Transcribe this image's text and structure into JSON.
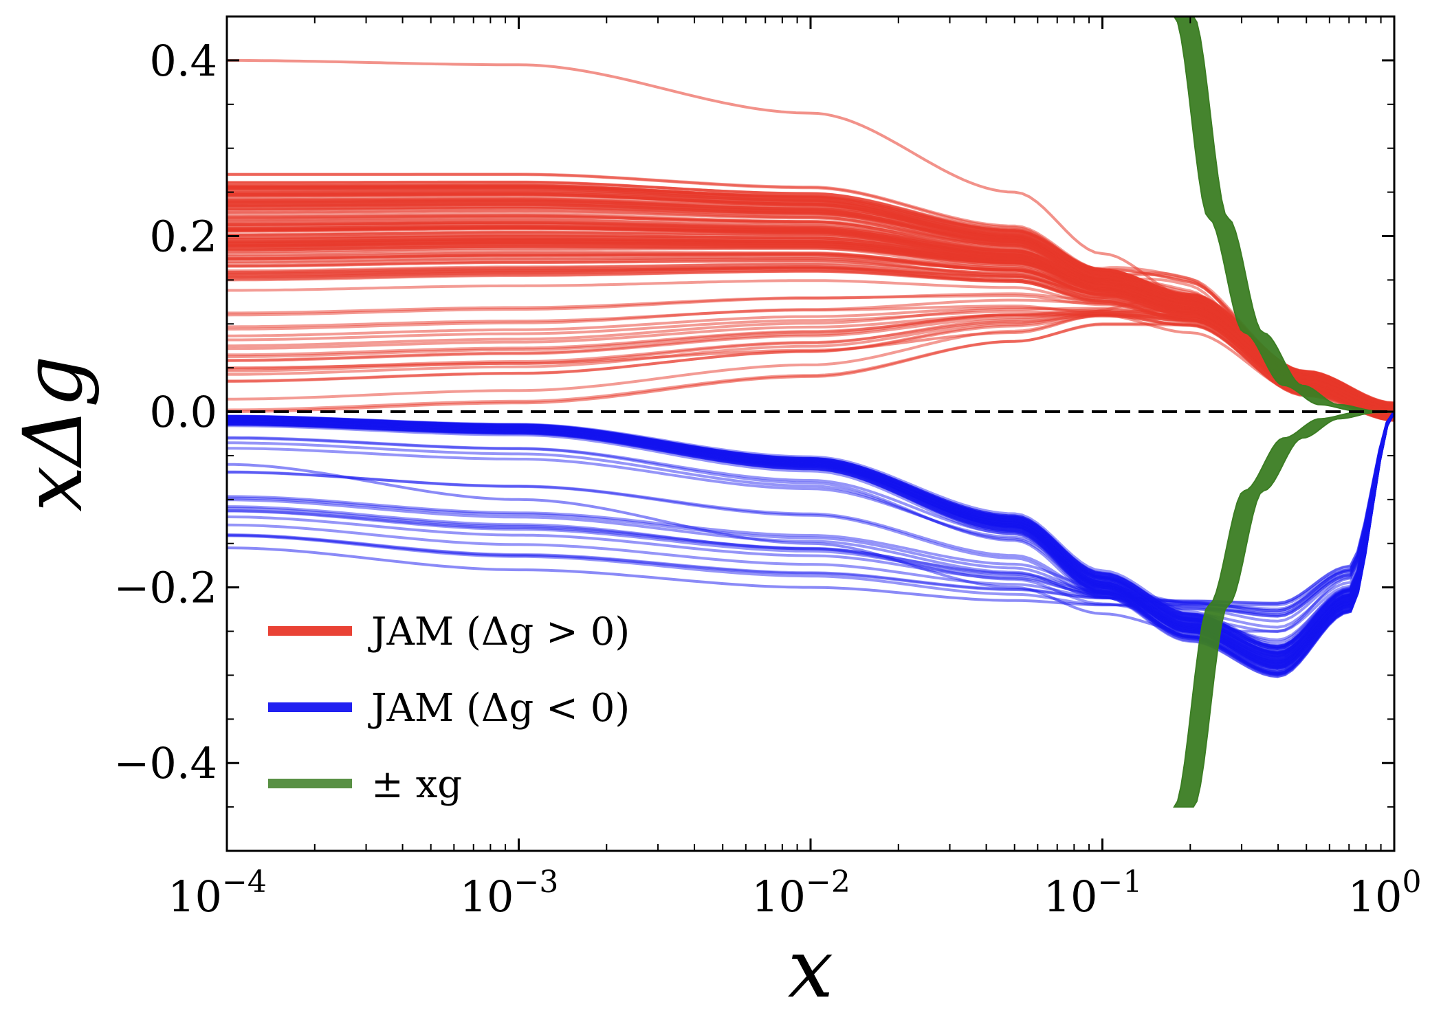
{
  "chart_data": {
    "type": "line",
    "title": "",
    "xlabel": "x",
    "ylabel": "xΔg",
    "xscale": "log",
    "xlim": [
      0.0001,
      1
    ],
    "ylim": [
      -0.5,
      0.45
    ],
    "x_ticks": [
      {
        "value": 0.0001,
        "base": "10",
        "exp": "−4"
      },
      {
        "value": 0.001,
        "base": "10",
        "exp": "−3"
      },
      {
        "value": 0.01,
        "base": "10",
        "exp": "−2"
      },
      {
        "value": 0.1,
        "base": "10",
        "exp": "−1"
      },
      {
        "value": 1,
        "base": "10",
        "exp": "0"
      }
    ],
    "y_ticks": [
      {
        "value": 0.4,
        "label": "0.4"
      },
      {
        "value": 0.2,
        "label": "0.2"
      },
      {
        "value": 0.0,
        "label": "0.0"
      },
      {
        "value": -0.2,
        "label": "−0.2"
      },
      {
        "value": -0.4,
        "label": "−0.4"
      }
    ],
    "reference_line": {
      "y": 0,
      "style": "dashed"
    },
    "legend": {
      "position": "lower-left",
      "entries": [
        {
          "label": "JAM (Δg > 0)",
          "color": "#e8382a"
        },
        {
          "label": "JAM (Δg < 0)",
          "color": "#1515f0"
        },
        {
          "label": "± xg",
          "color": "#3b7d23"
        }
      ]
    },
    "series": [
      {
        "name": "JAM (Δg > 0)",
        "color": "#e8382a",
        "replicas": 140,
        "representative_curves": [
          {
            "x": [
              0.0001,
              0.001,
              0.01,
              0.05,
              0.1,
              0.2,
              0.5,
              1
            ],
            "y": [
              0.4,
              0.395,
              0.34,
              0.25,
              0.18,
              0.13,
              0.03,
              0.0
            ]
          },
          {
            "x": [
              0.0001,
              0.001,
              0.01,
              0.05,
              0.1,
              0.2,
              0.5,
              1
            ],
            "y": [
              0.27,
              0.27,
              0.255,
              0.21,
              0.16,
              0.13,
              0.04,
              0.0
            ]
          },
          {
            "x": [
              0.0001,
              0.001,
              0.01,
              0.05,
              0.1,
              0.2,
              0.5,
              1
            ],
            "y": [
              0.15,
              0.155,
              0.16,
              0.15,
              0.13,
              0.11,
              0.03,
              0.0
            ]
          },
          {
            "x": [
              0.0001,
              0.001,
              0.01,
              0.05,
              0.1,
              0.2,
              0.5,
              1
            ],
            "y": [
              0.05,
              0.055,
              0.07,
              0.09,
              0.11,
              0.09,
              0.02,
              0.0
            ]
          },
          {
            "x": [
              0.0001,
              0.001,
              0.01,
              0.05,
              0.1,
              0.2,
              0.5,
              1
            ],
            "y": [
              0.0,
              0.01,
              0.04,
              0.08,
              0.1,
              0.1,
              0.02,
              0.0
            ]
          }
        ]
      },
      {
        "name": "JAM (Δg < 0)",
        "color": "#1515f0",
        "replicas": 90,
        "representative_curves": [
          {
            "x": [
              0.0001,
              0.001,
              0.01,
              0.05,
              0.1,
              0.2,
              0.4,
              0.7,
              1
            ],
            "y": [
              -0.01,
              -0.02,
              -0.06,
              -0.13,
              -0.2,
              -0.25,
              -0.29,
              -0.22,
              0.0
            ]
          },
          {
            "x": [
              0.0001,
              0.001,
              0.01,
              0.05,
              0.1,
              0.2,
              0.4,
              0.7,
              1
            ],
            "y": [
              -0.06,
              -0.1,
              -0.15,
              -0.2,
              -0.23,
              -0.25,
              -0.25,
              -0.19,
              0.0
            ]
          },
          {
            "x": [
              0.0001,
              0.001,
              0.01,
              0.05,
              0.1,
              0.2,
              0.4,
              0.7,
              1
            ],
            "y": [
              -0.155,
              -0.18,
              -0.2,
              -0.215,
              -0.22,
              -0.22,
              -0.22,
              -0.18,
              0.0
            ]
          }
        ]
      },
      {
        "name": "± xg",
        "color": "#3b7d23",
        "band": true,
        "x": [
          0.19,
          0.25,
          0.33,
          0.45,
          0.6,
          0.8,
          1
        ],
        "y_upper": [
          0.45,
          0.22,
          0.09,
          0.03,
          0.008,
          0.001,
          0.0
        ],
        "y_lower": [
          -0.45,
          -0.22,
          -0.09,
          -0.03,
          -0.008,
          -0.001,
          0.0
        ]
      }
    ]
  }
}
